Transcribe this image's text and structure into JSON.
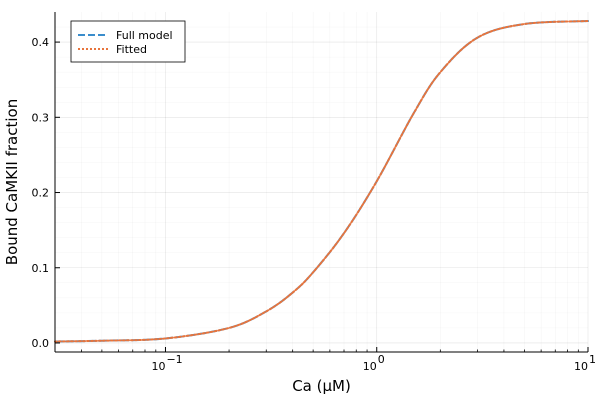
{
  "chart_data": {
    "type": "line",
    "xlabel": "Ca (μM)",
    "ylabel": "Bound CaMKII fraction",
    "x_scale": "log10",
    "xlim": [
      0.03,
      10
    ],
    "ylim": [
      -0.012,
      0.44
    ],
    "x_ticks": [
      {
        "value": 0.1,
        "base": "10",
        "exp": "−1"
      },
      {
        "value": 1,
        "base": "10",
        "exp": "0"
      },
      {
        "value": 10,
        "base": "10",
        "exp": "1"
      }
    ],
    "y_ticks": [
      {
        "value": 0.0,
        "label": "0.0"
      },
      {
        "value": 0.1,
        "label": "0.1"
      },
      {
        "value": 0.2,
        "label": "0.2"
      },
      {
        "value": 0.3,
        "label": "0.3"
      },
      {
        "value": 0.4,
        "label": "0.4"
      }
    ],
    "grid": true,
    "legend_position": "top-left",
    "series": [
      {
        "name": "Full model",
        "color": "#3a8dcc",
        "style": "dashed",
        "x": [
          0.03,
          0.05,
          0.1,
          0.2,
          0.3,
          0.4,
          0.5,
          0.7,
          1.0,
          1.5,
          2.0,
          3.0,
          5.0,
          10.0
        ],
        "y": [
          0.002,
          0.003,
          0.006,
          0.02,
          0.042,
          0.067,
          0.094,
          0.146,
          0.215,
          0.306,
          0.36,
          0.406,
          0.424,
          0.428
        ]
      },
      {
        "name": "Fitted",
        "color": "#e8743c",
        "style": "dotted",
        "x": [
          0.03,
          0.05,
          0.1,
          0.2,
          0.3,
          0.4,
          0.5,
          0.7,
          1.0,
          1.5,
          2.0,
          3.0,
          5.0,
          10.0
        ],
        "y": [
          0.002,
          0.003,
          0.006,
          0.02,
          0.042,
          0.067,
          0.094,
          0.146,
          0.215,
          0.306,
          0.36,
          0.406,
          0.424,
          0.428
        ]
      }
    ]
  }
}
